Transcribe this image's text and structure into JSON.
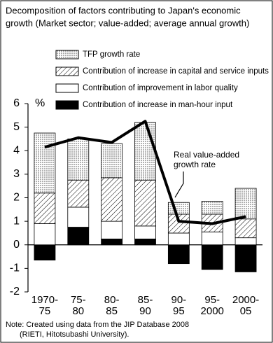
{
  "chart_data": {
    "type": "stacked_bar_line",
    "title": [
      "Decomposition of factors contributing to Japan's economic",
      "growth (Market sector; value-added; average annual growth)"
    ],
    "y_label": "%",
    "categories": [
      "1970-\n75",
      "75-\n80",
      "80-\n85",
      "85-\n90",
      "90-\n95",
      "95-\n2000",
      "2000-\n05"
    ],
    "series": [
      {
        "name": "TFP growth rate",
        "color": "#000000",
        "pattern": "dots",
        "values": [
          2.55,
          1.75,
          1.45,
          2.45,
          0.5,
          0.55,
          1.3
        ]
      },
      {
        "name": "Contribution of increase in capital and service inputs",
        "color": "#000000",
        "pattern": "hatch",
        "values": [
          1.3,
          1.15,
          1.85,
          1.95,
          0.8,
          0.75,
          0.8
        ]
      },
      {
        "name": "Contribution of improvement in labor quality",
        "color": "#ffffff",
        "values": [
          0.9,
          0.85,
          0.75,
          0.55,
          0.5,
          0.55,
          0.3
        ]
      },
      {
        "name": "Contribution of increase in man-hour input",
        "color": "#000000",
        "values": [
          -0.65,
          0.75,
          0.25,
          0.25,
          -0.8,
          -1.05,
          -1.15
        ]
      }
    ],
    "line": {
      "name": [
        "Real value-added",
        "growth rate"
      ],
      "color": "#000000",
      "values": [
        4.15,
        4.55,
        4.35,
        5.25,
        1.0,
        0.9,
        1.2
      ]
    },
    "ylim": [
      -2,
      6
    ],
    "yticks": [
      -2,
      -1,
      0,
      1,
      2,
      3,
      4,
      5,
      6
    ],
    "note": [
      "Note: Created using data from the JIP Database 2008",
      "(RIETI, Hitotsubashi University)."
    ]
  }
}
